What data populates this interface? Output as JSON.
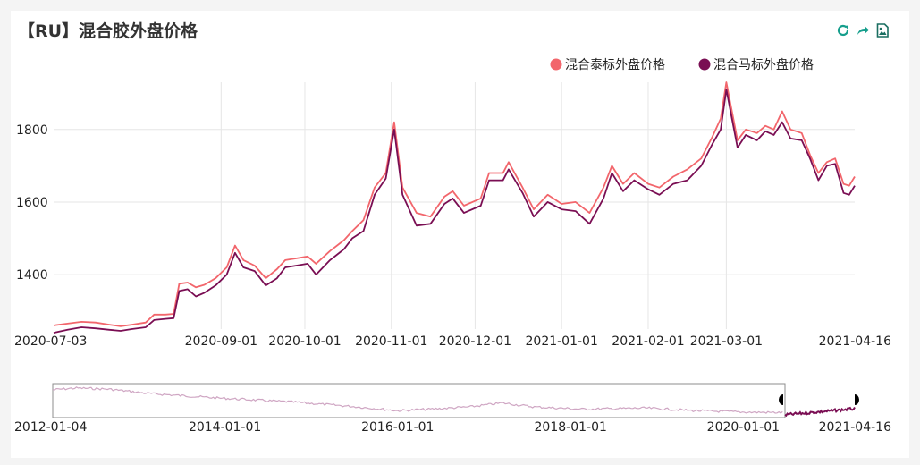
{
  "header": {
    "title": "【RU】混合胶外盘价格"
  },
  "toolbar": {
    "icons": [
      "refresh-icon",
      "share-icon",
      "save-image-icon"
    ]
  },
  "colors": {
    "thai": "#f2666c",
    "malay": "#7a0e53",
    "slider_line": "#cfa6c3",
    "handle": "#000000"
  },
  "chart_data": {
    "type": "line",
    "title": "",
    "xlabel": "",
    "ylabel": "",
    "ylim": [
      1250,
      1930
    ],
    "yticks": [
      "1400",
      "1600",
      "1800"
    ],
    "xticks": [
      "2020-07-03",
      "2020-09-01",
      "2020-10-01",
      "2020-11-01",
      "2020-12-01",
      "2021-01-01",
      "2021-02-01",
      "2021-03-01",
      "2021-04-16"
    ],
    "legend_position": "top-right",
    "grid": true,
    "series": [
      {
        "name": "混合泰标外盘价格",
        "points": [
          [
            "2020-07-03",
            1260
          ],
          [
            "2020-07-08",
            1265
          ],
          [
            "2020-07-13",
            1270
          ],
          [
            "2020-07-18",
            1268
          ],
          [
            "2020-07-23",
            1262
          ],
          [
            "2020-07-27",
            1258
          ],
          [
            "2020-07-31",
            1262
          ],
          [
            "2020-08-05",
            1268
          ],
          [
            "2020-08-08",
            1290
          ],
          [
            "2020-08-12",
            1290
          ],
          [
            "2020-08-15",
            1292
          ],
          [
            "2020-08-17",
            1375
          ],
          [
            "2020-08-20",
            1378
          ],
          [
            "2020-08-23",
            1365
          ],
          [
            "2020-08-26",
            1372
          ],
          [
            "2020-08-30",
            1390
          ],
          [
            "2020-09-03",
            1420
          ],
          [
            "2020-09-06",
            1480
          ],
          [
            "2020-09-09",
            1440
          ],
          [
            "2020-09-13",
            1425
          ],
          [
            "2020-09-17",
            1390
          ],
          [
            "2020-09-21",
            1415
          ],
          [
            "2020-09-24",
            1440
          ],
          [
            "2020-09-28",
            1445
          ],
          [
            "2020-10-02",
            1450
          ],
          [
            "2020-10-05",
            1430
          ],
          [
            "2020-10-10",
            1465
          ],
          [
            "2020-10-15",
            1495
          ],
          [
            "2020-10-18",
            1520
          ],
          [
            "2020-10-22",
            1550
          ],
          [
            "2020-10-26",
            1640
          ],
          [
            "2020-10-30",
            1680
          ],
          [
            "2020-11-02",
            1820
          ],
          [
            "2020-11-05",
            1640
          ],
          [
            "2020-11-10",
            1570
          ],
          [
            "2020-11-15",
            1560
          ],
          [
            "2020-11-20",
            1615
          ],
          [
            "2020-11-23",
            1630
          ],
          [
            "2020-11-27",
            1590
          ],
          [
            "2020-12-03",
            1610
          ],
          [
            "2020-12-06",
            1680
          ],
          [
            "2020-12-11",
            1680
          ],
          [
            "2020-12-13",
            1710
          ],
          [
            "2020-12-18",
            1640
          ],
          [
            "2020-12-22",
            1580
          ],
          [
            "2020-12-27",
            1620
          ],
          [
            "2021-01-01",
            1595
          ],
          [
            "2021-01-06",
            1600
          ],
          [
            "2021-01-11",
            1570
          ],
          [
            "2021-01-16",
            1640
          ],
          [
            "2021-01-19",
            1700
          ],
          [
            "2021-01-23",
            1650
          ],
          [
            "2021-01-27",
            1680
          ],
          [
            "2021-02-01",
            1650
          ],
          [
            "2021-02-05",
            1640
          ],
          [
            "2021-02-10",
            1670
          ],
          [
            "2021-02-15",
            1690
          ],
          [
            "2021-02-20",
            1720
          ],
          [
            "2021-02-24",
            1780
          ],
          [
            "2021-02-27",
            1830
          ],
          [
            "2021-03-01",
            1930
          ],
          [
            "2021-03-05",
            1770
          ],
          [
            "2021-03-08",
            1800
          ],
          [
            "2021-03-12",
            1790
          ],
          [
            "2021-03-15",
            1810
          ],
          [
            "2021-03-18",
            1800
          ],
          [
            "2021-03-21",
            1850
          ],
          [
            "2021-03-24",
            1800
          ],
          [
            "2021-03-28",
            1790
          ],
          [
            "2021-03-31",
            1730
          ],
          [
            "2021-04-03",
            1680
          ],
          [
            "2021-04-06",
            1710
          ],
          [
            "2021-04-09",
            1720
          ],
          [
            "2021-04-12",
            1650
          ],
          [
            "2021-04-14",
            1645
          ],
          [
            "2021-04-16",
            1670
          ]
        ]
      },
      {
        "name": "混合马标外盘价格",
        "points": [
          [
            "2020-07-03",
            1240
          ],
          [
            "2020-07-08",
            1248
          ],
          [
            "2020-07-13",
            1255
          ],
          [
            "2020-07-18",
            1252
          ],
          [
            "2020-07-23",
            1248
          ],
          [
            "2020-07-27",
            1245
          ],
          [
            "2020-07-31",
            1250
          ],
          [
            "2020-08-05",
            1255
          ],
          [
            "2020-08-08",
            1275
          ],
          [
            "2020-08-12",
            1278
          ],
          [
            "2020-08-15",
            1280
          ],
          [
            "2020-08-17",
            1355
          ],
          [
            "2020-08-20",
            1360
          ],
          [
            "2020-08-23",
            1340
          ],
          [
            "2020-08-26",
            1350
          ],
          [
            "2020-08-30",
            1370
          ],
          [
            "2020-09-03",
            1400
          ],
          [
            "2020-09-06",
            1460
          ],
          [
            "2020-09-09",
            1420
          ],
          [
            "2020-09-13",
            1410
          ],
          [
            "2020-09-17",
            1370
          ],
          [
            "2020-09-21",
            1390
          ],
          [
            "2020-09-24",
            1420
          ],
          [
            "2020-09-28",
            1425
          ],
          [
            "2020-10-02",
            1430
          ],
          [
            "2020-10-05",
            1400
          ],
          [
            "2020-10-10",
            1440
          ],
          [
            "2020-10-15",
            1470
          ],
          [
            "2020-10-18",
            1500
          ],
          [
            "2020-10-22",
            1520
          ],
          [
            "2020-10-26",
            1620
          ],
          [
            "2020-10-30",
            1665
          ],
          [
            "2020-11-02",
            1800
          ],
          [
            "2020-11-05",
            1620
          ],
          [
            "2020-11-10",
            1535
          ],
          [
            "2020-11-15",
            1540
          ],
          [
            "2020-11-20",
            1595
          ],
          [
            "2020-11-23",
            1610
          ],
          [
            "2020-11-27",
            1570
          ],
          [
            "2020-12-03",
            1590
          ],
          [
            "2020-12-06",
            1660
          ],
          [
            "2020-12-11",
            1660
          ],
          [
            "2020-12-13",
            1690
          ],
          [
            "2020-12-18",
            1625
          ],
          [
            "2020-12-22",
            1560
          ],
          [
            "2020-12-27",
            1600
          ],
          [
            "2021-01-01",
            1580
          ],
          [
            "2021-01-06",
            1575
          ],
          [
            "2021-01-11",
            1540
          ],
          [
            "2021-01-16",
            1610
          ],
          [
            "2021-01-19",
            1680
          ],
          [
            "2021-01-23",
            1630
          ],
          [
            "2021-01-27",
            1660
          ],
          [
            "2021-02-01",
            1635
          ],
          [
            "2021-02-05",
            1620
          ],
          [
            "2021-02-10",
            1650
          ],
          [
            "2021-02-15",
            1660
          ],
          [
            "2021-02-20",
            1700
          ],
          [
            "2021-02-24",
            1760
          ],
          [
            "2021-02-27",
            1800
          ],
          [
            "2021-03-01",
            1910
          ],
          [
            "2021-03-05",
            1750
          ],
          [
            "2021-03-08",
            1785
          ],
          [
            "2021-03-12",
            1770
          ],
          [
            "2021-03-15",
            1795
          ],
          [
            "2021-03-18",
            1785
          ],
          [
            "2021-03-21",
            1820
          ],
          [
            "2021-03-24",
            1775
          ],
          [
            "2021-03-28",
            1770
          ],
          [
            "2021-03-31",
            1720
          ],
          [
            "2021-04-03",
            1660
          ],
          [
            "2021-04-06",
            1700
          ],
          [
            "2021-04-09",
            1705
          ],
          [
            "2021-04-12",
            1625
          ],
          [
            "2021-04-14",
            1620
          ],
          [
            "2021-04-16",
            1645
          ]
        ]
      }
    ],
    "overview": {
      "xticks": [
        "2012-01-04",
        "2014-01-01",
        "2016-01-01",
        "2018-01-01",
        "2020-01-01",
        "2021-04-16"
      ],
      "selection_start": "2020-07-03",
      "selection_end": "2021-04-16"
    }
  }
}
